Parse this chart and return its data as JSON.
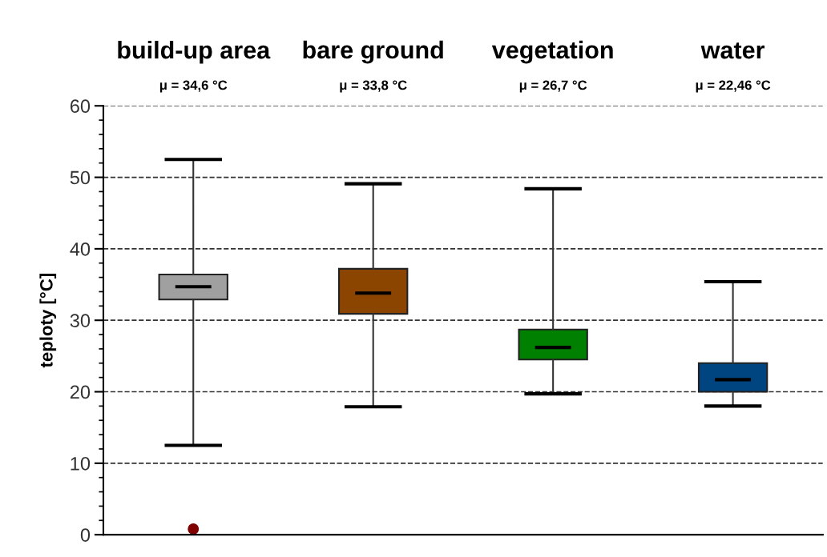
{
  "chart_data": {
    "type": "box",
    "ylabel": "teploty [°C]",
    "categories": [
      "build-up area",
      "bare ground",
      "vegetation",
      "water"
    ],
    "colors": [
      "#a0a0a0",
      "#8b4500",
      "#008000",
      "#00457f"
    ],
    "boxes": [
      {
        "low": 12.5,
        "q1": 32.9,
        "median": 34.7,
        "q3": 36.4,
        "high": 52.5,
        "outliers": [
          0.8
        ]
      },
      {
        "low": 17.9,
        "q1": 30.9,
        "median": 33.8,
        "q3": 37.2,
        "high": 49.1
      },
      {
        "low": 19.7,
        "q1": 24.5,
        "median": 26.2,
        "q3": 28.7,
        "high": 48.4
      },
      {
        "low": 18.0,
        "q1": 20.0,
        "median": 21.7,
        "q3": 24.0,
        "high": 35.4
      }
    ],
    "annotations": [
      "μ = 34,6 °C",
      "μ = 33,8 °C",
      "μ = 26,7 °C",
      "μ = 22,46 °C"
    ],
    "ylim": [
      0,
      60
    ],
    "yticks": [
      0,
      10,
      20,
      30,
      40,
      50,
      60
    ],
    "grid": "y",
    "line_style": "dashed"
  }
}
